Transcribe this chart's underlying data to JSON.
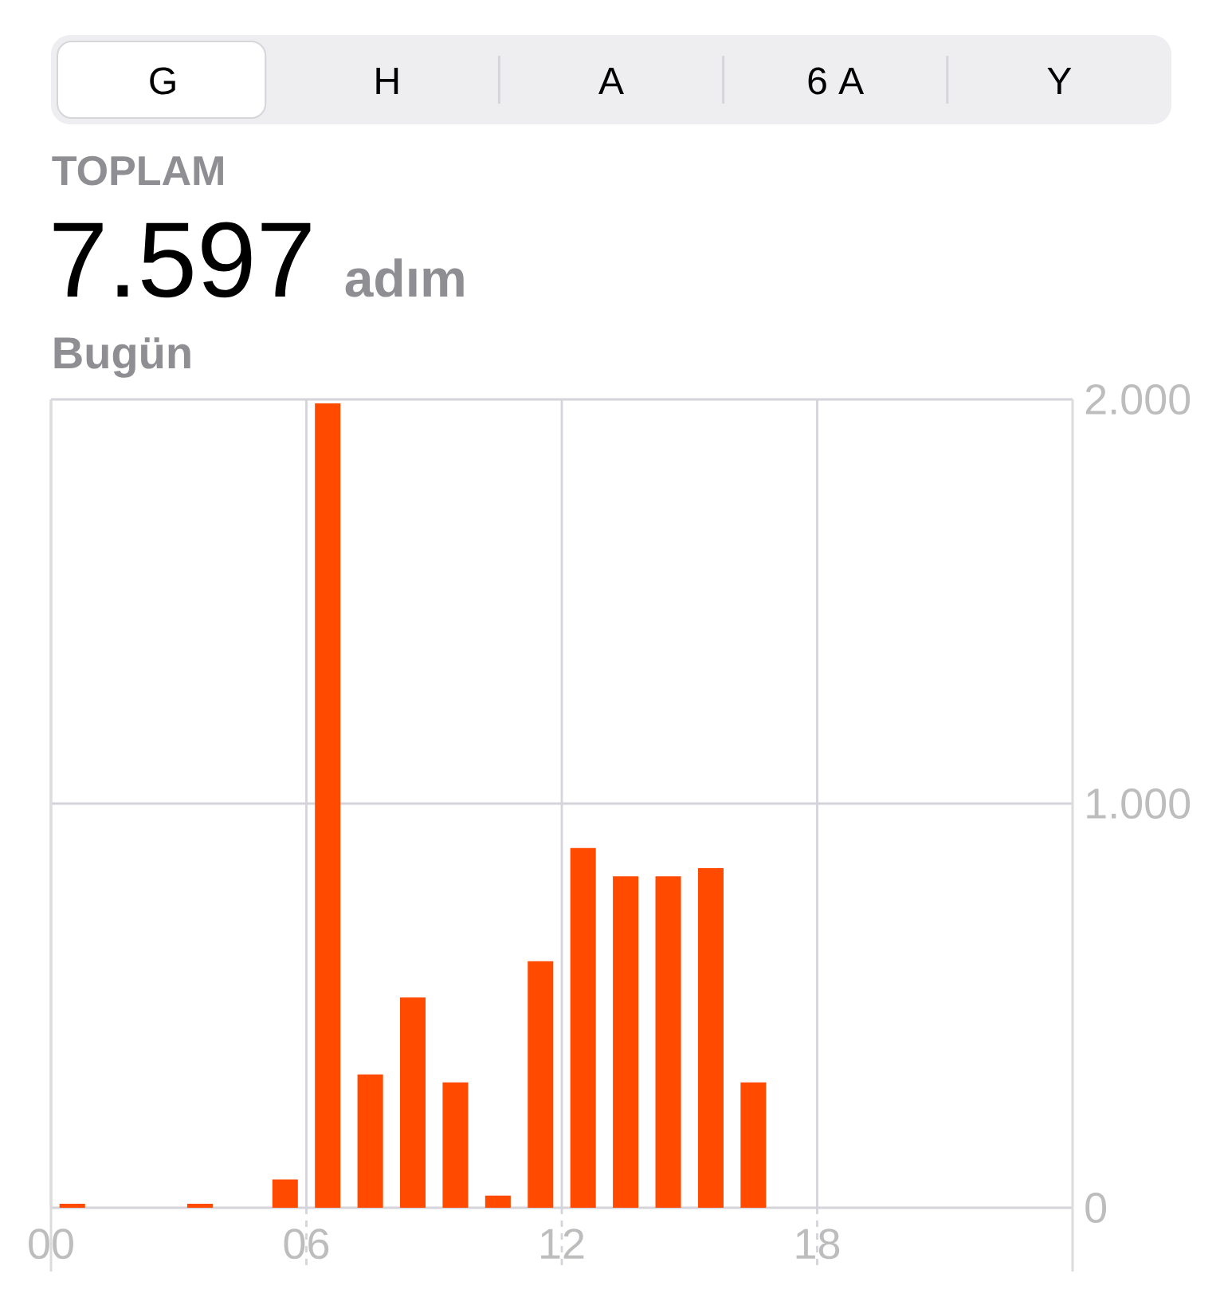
{
  "chart_data": {
    "type": "bar",
    "title": "TOPLAM",
    "subtitle": "Bugün",
    "annotations": [
      "G",
      "H",
      "A",
      "6 A",
      "Y",
      "7.597",
      "adım"
    ],
    "x": [
      0.5,
      3.5,
      5.5,
      6.5,
      7.5,
      8.5,
      9.5,
      10.5,
      11.5,
      12.5,
      13.5,
      14.5,
      15.5,
      16.5
    ],
    "values": [
      10,
      10,
      70,
      1990,
      330,
      520,
      310,
      30,
      610,
      890,
      820,
      820,
      840,
      310
    ],
    "color": "#ff4a00",
    "xlim": [
      0,
      24
    ],
    "xticks": [
      {
        "value": 0,
        "label": "00"
      },
      {
        "value": 6,
        "label": "06"
      },
      12,
      18
    ],
    "ylim": [
      0,
      2000
    ],
    "yticks": [
      0,
      {
        "value": 1000,
        "label": "1.000"
      },
      {
        "value": 2000,
        "label": "2.000"
      }
    ],
    "grid": true
  }
}
